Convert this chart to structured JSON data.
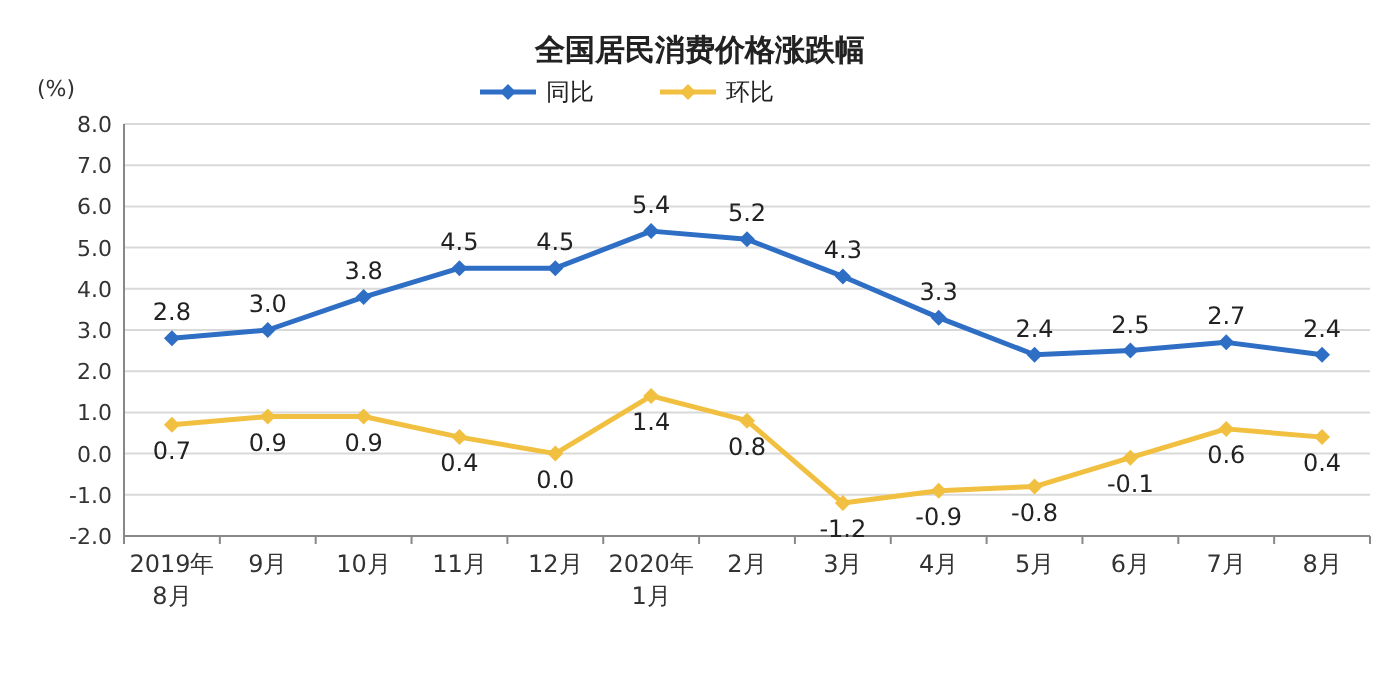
{
  "chart_data": {
    "type": "line",
    "title": "全国居民消费价格涨跌幅",
    "ylabel": "(%)",
    "categories": [
      "2019年\n8月",
      "9月",
      "10月",
      "11月",
      "12月",
      "2020年\n1月",
      "2月",
      "3月",
      "4月",
      "5月",
      "6月",
      "7月",
      "8月"
    ],
    "series": [
      {
        "name": "同比",
        "color": "#2e6ec4",
        "values": [
          2.8,
          3.0,
          3.8,
          4.5,
          4.5,
          5.4,
          5.2,
          4.3,
          3.3,
          2.4,
          2.5,
          2.7,
          2.4
        ],
        "value_labels": [
          "2.8",
          "3.0",
          "3.8",
          "4.5",
          "4.5",
          "5.4",
          "5.2",
          "4.3",
          "3.3",
          "2.4",
          "2.5",
          "2.7",
          "2.4"
        ]
      },
      {
        "name": "环比",
        "color": "#f2c040",
        "values": [
          0.7,
          0.9,
          0.9,
          0.4,
          0.0,
          1.4,
          0.8,
          -1.2,
          -0.9,
          -0.8,
          -0.1,
          0.6,
          0.4
        ],
        "value_labels": [
          "0.7",
          "0.9",
          "0.9",
          "0.4",
          "0.0",
          "1.4",
          "0.8",
          "-1.2",
          "-0.9",
          "-0.8",
          "-0.1",
          "0.6",
          "0.4"
        ]
      }
    ],
    "ylim": [
      -2,
      8
    ],
    "yticks": [
      {
        "value": -2,
        "label": "-2.0"
      },
      {
        "value": -1,
        "label": "-1.0"
      },
      {
        "value": 0,
        "label": "0.0"
      },
      {
        "value": 1,
        "label": "1.0"
      },
      {
        "value": 2,
        "label": "2.0"
      },
      {
        "value": 3,
        "label": "3.0"
      },
      {
        "value": 4,
        "label": "4.0"
      },
      {
        "value": 5,
        "label": "5.0"
      },
      {
        "value": 6,
        "label": "6.0"
      },
      {
        "value": 7,
        "label": "7.0"
      },
      {
        "value": 8,
        "label": "8.0"
      }
    ],
    "grid": "y",
    "legend": "top",
    "marker": "diamond",
    "line_style": "solid"
  }
}
